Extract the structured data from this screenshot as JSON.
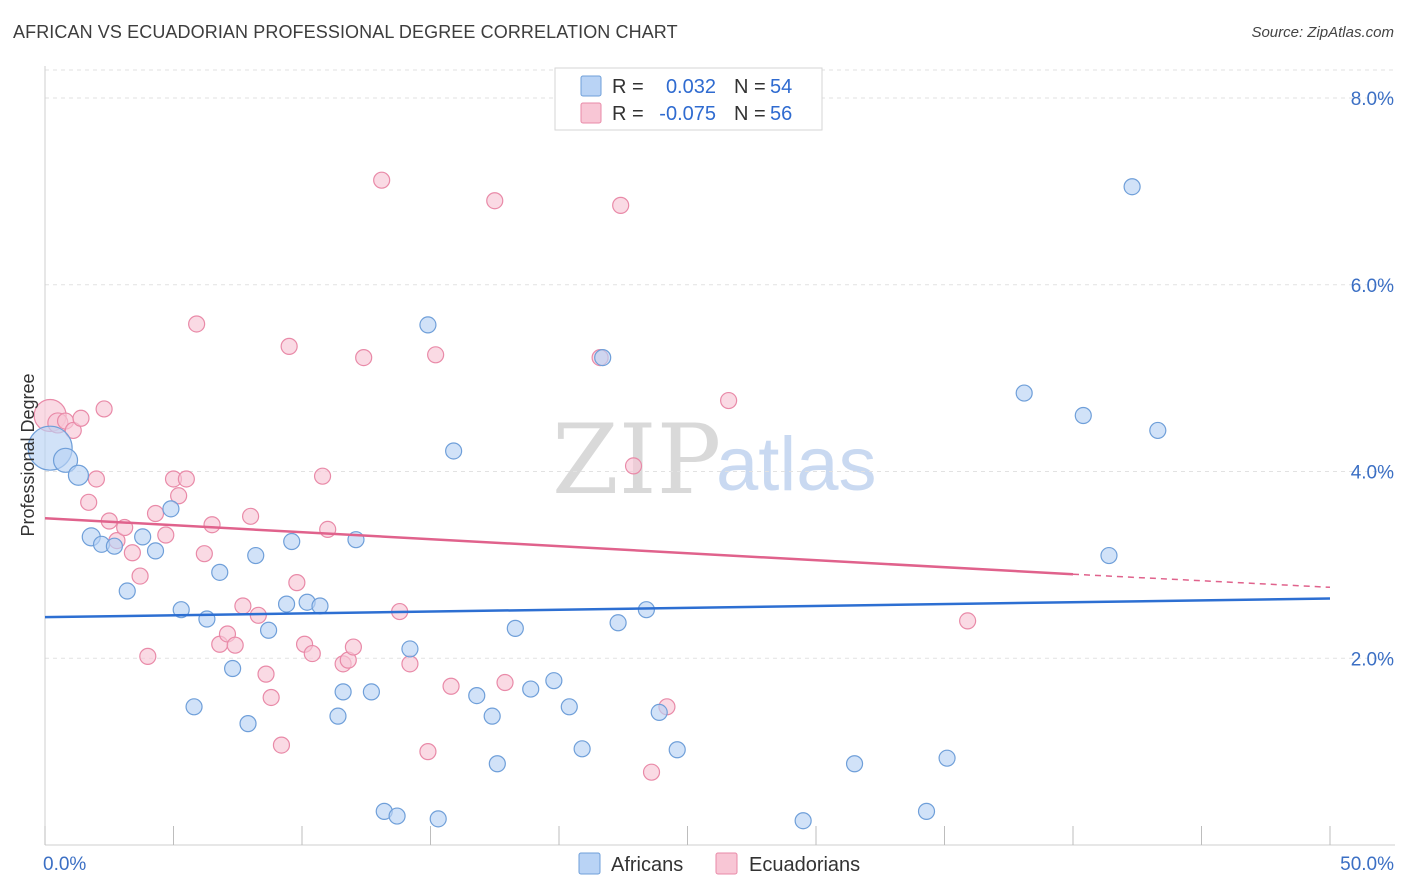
{
  "header": {
    "title": "AFRICAN VS ECUADORIAN PROFESSIONAL DEGREE CORRELATION CHART",
    "source": "Source: ZipAtlas.com"
  },
  "watermark": {
    "zip": "ZIP",
    "atlas": "atlas"
  },
  "colors": {
    "africans_fill": "#b9d3f5",
    "africans_stroke": "#6f9fd9",
    "africans_line": "#2d6fd2",
    "ecuadorians_fill": "#f8c6d5",
    "ecuadorians_stroke": "#e98aa8",
    "ecuadorians_line": "#e0628c"
  },
  "legend": {
    "rows": [
      {
        "r_label": "R =",
        "r_value": "0.032",
        "n_label": "N =",
        "n_value": "54"
      },
      {
        "r_label": "R =",
        "r_value": "-0.075",
        "n_label": "N =",
        "n_value": "56"
      }
    ]
  },
  "bottom_legend": [
    "Africans",
    "Ecuadorians"
  ],
  "chart_data": {
    "type": "scatter",
    "ylabel": "Professional Degree",
    "xlim": [
      0,
      50
    ],
    "ylim": [
      0,
      8.3
    ],
    "x_tick_labels": [
      {
        "value": 0,
        "label": "0.0%"
      },
      {
        "value": 50,
        "label": "50.0%"
      }
    ],
    "y_tick_labels": [
      {
        "value": 2,
        "label": "2.0%"
      },
      {
        "value": 4,
        "label": "4.0%"
      },
      {
        "value": 6,
        "label": "6.0%"
      },
      {
        "value": 8,
        "label": "8.0%"
      }
    ],
    "grid": "horizontal dashed",
    "series": [
      {
        "name": "Africans",
        "trend": {
          "x": [
            0,
            50
          ],
          "y": [
            2.44,
            2.64
          ]
        },
        "points": [
          [
            0.2,
            4.25,
            22
          ],
          [
            0.8,
            4.12,
            12
          ],
          [
            1.3,
            3.96,
            10
          ],
          [
            1.8,
            3.3,
            9
          ],
          [
            2.2,
            3.22,
            8
          ],
          [
            2.7,
            3.2,
            8
          ],
          [
            3.2,
            2.72,
            8
          ],
          [
            3.8,
            3.3,
            8
          ],
          [
            4.3,
            3.15,
            8
          ],
          [
            4.9,
            3.6,
            8
          ],
          [
            5.3,
            2.52,
            8
          ],
          [
            5.8,
            1.48,
            8
          ],
          [
            6.3,
            2.42,
            8
          ],
          [
            6.8,
            2.92,
            8
          ],
          [
            7.3,
            1.89,
            8
          ],
          [
            7.9,
            1.3,
            8
          ],
          [
            8.2,
            3.1,
            8
          ],
          [
            8.7,
            2.3,
            8
          ],
          [
            9.4,
            2.58,
            8
          ],
          [
            9.6,
            3.25,
            8
          ],
          [
            10.2,
            2.6,
            8
          ],
          [
            10.7,
            2.56,
            8
          ],
          [
            11.4,
            1.38,
            8
          ],
          [
            11.6,
            1.64,
            8
          ],
          [
            12.1,
            3.27,
            8
          ],
          [
            12.7,
            1.64,
            8
          ],
          [
            13.2,
            0.36,
            8
          ],
          [
            13.7,
            0.31,
            8
          ],
          [
            14.2,
            2.1,
            8
          ],
          [
            14.9,
            5.57,
            8
          ],
          [
            15.3,
            0.28,
            8
          ],
          [
            15.9,
            4.22,
            8
          ],
          [
            16.8,
            1.6,
            8
          ],
          [
            17.4,
            1.38,
            8
          ],
          [
            17.6,
            0.87,
            8
          ],
          [
            18.3,
            2.32,
            8
          ],
          [
            18.9,
            1.67,
            8
          ],
          [
            19.8,
            1.76,
            8
          ],
          [
            20.4,
            1.48,
            8
          ],
          [
            20.9,
            1.03,
            8
          ],
          [
            21.7,
            5.22,
            8
          ],
          [
            22.3,
            2.38,
            8
          ],
          [
            23.4,
            2.52,
            8
          ],
          [
            23.9,
            1.42,
            8
          ],
          [
            24.6,
            1.02,
            8
          ],
          [
            29.5,
            0.26,
            8
          ],
          [
            31.5,
            0.87,
            8
          ],
          [
            34.3,
            0.36,
            8
          ],
          [
            35.1,
            0.93,
            8
          ],
          [
            38.1,
            4.84,
            8
          ],
          [
            40.4,
            4.6,
            8
          ],
          [
            41.4,
            3.1,
            8
          ],
          [
            42.3,
            7.05,
            8
          ],
          [
            43.3,
            4.44,
            8
          ]
        ]
      },
      {
        "name": "Ecuadorians",
        "trend": {
          "x": [
            0,
            40
          ],
          "y": [
            3.5,
            2.9
          ]
        },
        "trend_dashed": {
          "x": [
            40,
            50
          ],
          "y": [
            2.9,
            2.76
          ]
        },
        "points": [
          [
            0.2,
            4.6,
            16
          ],
          [
            0.5,
            4.52,
            10
          ],
          [
            0.8,
            4.54,
            8
          ],
          [
            1.1,
            4.44,
            8
          ],
          [
            1.4,
            4.57,
            8
          ],
          [
            1.7,
            3.67,
            8
          ],
          [
            2.0,
            3.92,
            8
          ],
          [
            2.3,
            4.67,
            8
          ],
          [
            2.5,
            3.47,
            8
          ],
          [
            2.8,
            3.26,
            8
          ],
          [
            3.1,
            3.4,
            8
          ],
          [
            3.4,
            3.13,
            8
          ],
          [
            3.7,
            2.88,
            8
          ],
          [
            4.0,
            2.02,
            8
          ],
          [
            4.3,
            3.55,
            8
          ],
          [
            4.7,
            3.32,
            8
          ],
          [
            5.0,
            3.92,
            8
          ],
          [
            5.2,
            3.74,
            8
          ],
          [
            5.5,
            3.92,
            8
          ],
          [
            5.9,
            5.58,
            8
          ],
          [
            6.2,
            3.12,
            8
          ],
          [
            6.5,
            3.43,
            8
          ],
          [
            6.8,
            2.15,
            8
          ],
          [
            7.1,
            2.26,
            8
          ],
          [
            7.4,
            2.14,
            8
          ],
          [
            7.7,
            2.56,
            8
          ],
          [
            8.0,
            3.52,
            8
          ],
          [
            8.3,
            2.46,
            8
          ],
          [
            8.6,
            1.83,
            8
          ],
          [
            8.8,
            1.58,
            8
          ],
          [
            9.2,
            1.07,
            8
          ],
          [
            9.5,
            5.34,
            8
          ],
          [
            9.8,
            2.81,
            8
          ],
          [
            10.1,
            2.15,
            8
          ],
          [
            10.4,
            2.05,
            8
          ],
          [
            10.8,
            3.95,
            8
          ],
          [
            11.0,
            3.38,
            8
          ],
          [
            11.6,
            1.94,
            8
          ],
          [
            11.8,
            1.98,
            8
          ],
          [
            12.0,
            2.12,
            8
          ],
          [
            12.4,
            5.22,
            8
          ],
          [
            13.1,
            7.12,
            8
          ],
          [
            13.8,
            2.5,
            8
          ],
          [
            14.2,
            1.94,
            8
          ],
          [
            14.9,
            1.0,
            8
          ],
          [
            15.2,
            5.25,
            8
          ],
          [
            15.8,
            1.7,
            8
          ],
          [
            17.5,
            6.9,
            8
          ],
          [
            17.9,
            1.74,
            8
          ],
          [
            21.6,
            5.22,
            8
          ],
          [
            22.4,
            6.85,
            8
          ],
          [
            22.9,
            4.06,
            8
          ],
          [
            23.6,
            0.78,
            8
          ],
          [
            24.2,
            1.48,
            8
          ],
          [
            26.6,
            4.76,
            8
          ],
          [
            35.9,
            2.4,
            8
          ]
        ]
      }
    ]
  }
}
